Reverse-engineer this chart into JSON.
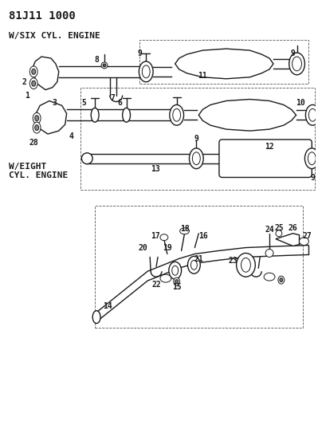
{
  "title": "81J11 1000",
  "bg_color": "#ffffff",
  "line_color": "#1a1a1a",
  "section1_label": "W/SIX CYL. ENGINE",
  "section2_label": "W/EIGHT\nCYL. ENGINE",
  "fig_w": 3.99,
  "fig_h": 5.33,
  "dpi": 100,
  "xlim": [
    0,
    399
  ],
  "ylim": [
    0,
    533
  ],
  "font_size_title": 10,
  "font_size_label": 8,
  "font_size_part": 7
}
